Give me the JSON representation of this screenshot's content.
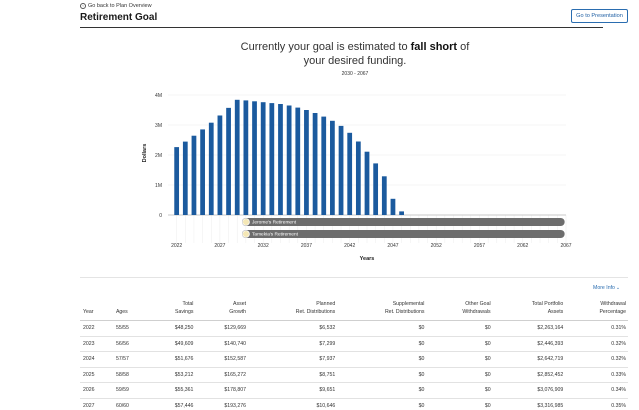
{
  "header": {
    "back_label": "Go back to Plan Overview",
    "title": "Retirement Goal",
    "presentation_button": "Go to Presentation"
  },
  "headline": {
    "prefix": "Currently your goal is estimated to ",
    "emphasis": "fall short",
    "suffix": " of",
    "line2": "your desired funding."
  },
  "date_range": "2030 - 2067",
  "colors": {
    "bar": "#1b5a9e",
    "timeline": "#6d6d6d",
    "accent": "#2a6db0"
  },
  "chart_data": {
    "type": "bar",
    "xlabel": "Years",
    "ylabel": "Dollars",
    "ylim": [
      0,
      4000000
    ],
    "yticks": [
      {
        "value": 0,
        "label": "0"
      },
      {
        "value": 1000000,
        "label": "1M"
      },
      {
        "value": 2000000,
        "label": "2M"
      },
      {
        "value": 3000000,
        "label": "3M"
      },
      {
        "value": 4000000,
        "label": "4M"
      }
    ],
    "xlim": [
      2021,
      2067
    ],
    "xticks": [
      2022,
      2027,
      2032,
      2037,
      2042,
      2047,
      2052,
      2057,
      2062,
      2067
    ],
    "x": [
      2022,
      2023,
      2024,
      2025,
      2026,
      2027,
      2028,
      2029,
      2030,
      2031,
      2032,
      2033,
      2034,
      2035,
      2036,
      2037,
      2038,
      2039,
      2040,
      2041,
      2042,
      2043,
      2044,
      2045,
      2046,
      2047,
      2048
    ],
    "values": [
      2263164,
      2446393,
      2642719,
      2852452,
      3076909,
      3316985,
      3571000,
      3840000,
      3820000,
      3790000,
      3760000,
      3730000,
      3700000,
      3650000,
      3580000,
      3500000,
      3400000,
      3280000,
      3140000,
      2970000,
      2740000,
      2450000,
      2110000,
      1720000,
      1290000,
      540000,
      120000
    ],
    "milestones": [
      {
        "label": "Jerome's Retirement",
        "start": 2029.9,
        "end": 2066.5
      },
      {
        "label": "Tamekia's Retirement",
        "start": 2029.9,
        "end": 2066.5
      }
    ]
  },
  "table": {
    "more_info": "More Info",
    "columns": [
      [
        "Year"
      ],
      [
        "Ages"
      ],
      [
        "Total",
        "Savings"
      ],
      [
        "Asset",
        "Growth"
      ],
      [
        "Planned",
        "Ret. Distributions"
      ],
      [
        "Supplemental",
        "Ret. Distributions"
      ],
      [
        "Other Goal",
        "Withdrawals"
      ],
      [
        "Total Portfolio",
        "Assets"
      ],
      [
        "Withdrawal",
        "Percentage"
      ]
    ],
    "rows": [
      [
        "2022",
        "55/55",
        "$48,250",
        "$129,669",
        "$6,532",
        "$0",
        "$0",
        "$2,263,164",
        "0.31%"
      ],
      [
        "2023",
        "56/56",
        "$49,609",
        "$140,740",
        "$7,299",
        "$0",
        "$0",
        "$2,446,393",
        "0.32%"
      ],
      [
        "2024",
        "57/57",
        "$51,676",
        "$152,587",
        "$7,937",
        "$0",
        "$0",
        "$2,642,719",
        "0.32%"
      ],
      [
        "2025",
        "58/58",
        "$53,212",
        "$165,272",
        "$8,751",
        "$0",
        "$0",
        "$2,852,452",
        "0.33%"
      ],
      [
        "2026",
        "59/59",
        "$55,361",
        "$178,807",
        "$9,651",
        "$0",
        "$0",
        "$3,076,909",
        "0.34%"
      ],
      [
        "2027",
        "60/60",
        "$57,446",
        "$193,276",
        "$10,646",
        "$0",
        "$0",
        "$3,316,985",
        "0.35%"
      ]
    ]
  }
}
